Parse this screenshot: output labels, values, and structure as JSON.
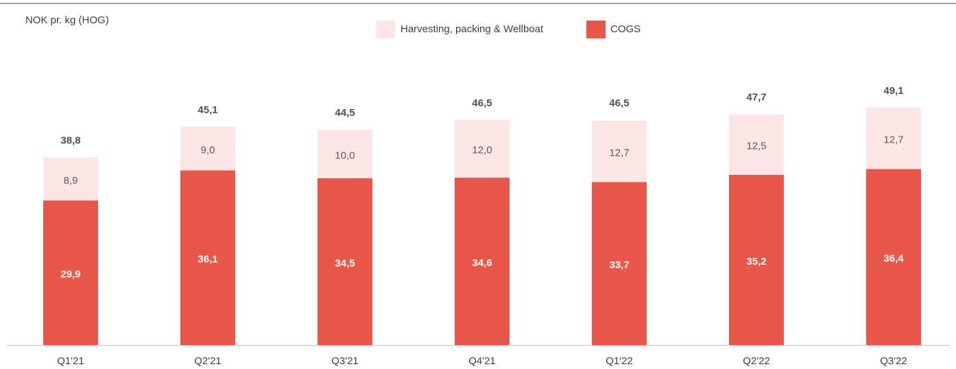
{
  "chart_data": {
    "type": "stacked_bar",
    "title": "NOK pr. kg (HOG)",
    "categories": [
      "Q1'21",
      "Q2'21",
      "Q3'21",
      "Q4'21",
      "Q1'22",
      "Q2'22",
      "Q3'22"
    ],
    "series": [
      {
        "name": "COGS",
        "color": "#e8574a",
        "values": [
          29.9,
          36.1,
          34.5,
          34.6,
          33.7,
          35.2,
          36.4
        ],
        "value_labels": [
          "29,9",
          "36,1",
          "34,5",
          "34,6",
          "33,7",
          "35,2",
          "36,4"
        ]
      },
      {
        "name": "Harvesting, packing & Wellboat",
        "color": "#fde6e5",
        "values": [
          8.9,
          9.0,
          10.0,
          12.0,
          12.7,
          12.5,
          12.7
        ],
        "value_labels": [
          "8,9",
          "9,0",
          "10,0",
          "12,0",
          "12,7",
          "12,5",
          "12,7"
        ]
      }
    ],
    "totals": [
      38.8,
      45.1,
      44.5,
      46.5,
      46.5,
      47.7,
      49.1
    ],
    "total_labels": [
      "38,8",
      "45,1",
      "44,5",
      "46,5",
      "46,5",
      "47,7",
      "49,1"
    ],
    "ylim": [
      0,
      60
    ]
  }
}
